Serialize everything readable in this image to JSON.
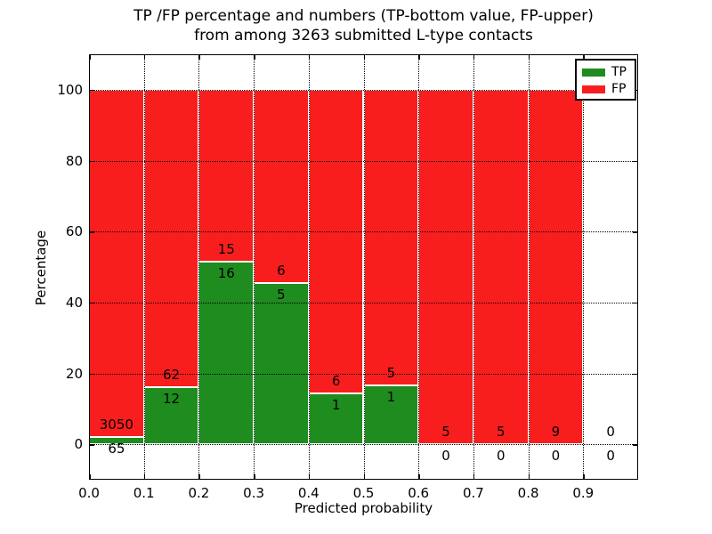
{
  "chart_data": {
    "type": "bar",
    "stacked": true,
    "normalized_to_percent": true,
    "title_line1": "TP /FP percentage and numbers (TP-bottom value, FP-upper)",
    "title_line2": "from among 3263 submitted L-type contacts",
    "xlabel": "Predicted probability",
    "ylabel": "Percentage",
    "xlim": [
      0.0,
      1.0
    ],
    "ylim": [
      -10,
      110
    ],
    "x_tick_values": [
      0.0,
      0.1,
      0.2,
      0.3,
      0.4,
      0.5,
      0.6,
      0.7,
      0.8,
      0.9
    ],
    "x_tick_labels": [
      "0.0",
      "0.1",
      "0.2",
      "0.3",
      "0.4",
      "0.5",
      "0.6",
      "0.7",
      "0.8",
      "0.9"
    ],
    "y_tick_values": [
      0,
      20,
      40,
      60,
      80,
      100
    ],
    "y_tick_labels": [
      "0",
      "20",
      "40",
      "60",
      "80",
      "100"
    ],
    "grid": true,
    "bin_width": 0.1,
    "categories": [
      "0.0-0.1",
      "0.1-0.2",
      "0.2-0.3",
      "0.3-0.4",
      "0.4-0.5",
      "0.5-0.6",
      "0.6-0.7",
      "0.7-0.8",
      "0.8-0.9",
      "0.9-1.0"
    ],
    "series": [
      {
        "name": "TP",
        "color": "#1e8c1e",
        "values": [
          65,
          12,
          16,
          5,
          1,
          1,
          0,
          0,
          0,
          0
        ]
      },
      {
        "name": "FP",
        "color": "#f91e1e",
        "values": [
          3050,
          62,
          15,
          6,
          6,
          5,
          5,
          5,
          9,
          0
        ]
      }
    ],
    "tp_percent_of_bin": [
      2.1,
      16.2,
      51.6,
      45.5,
      14.3,
      16.7,
      0.0,
      0.0,
      0.0,
      null
    ],
    "legend_position": "upper right",
    "legend": [
      {
        "label": "TP",
        "color": "#1e8c1e"
      },
      {
        "label": "FP",
        "color": "#f91e1e"
      }
    ],
    "colors": {
      "tp": "#1e8c1e",
      "fp": "#f91e1e",
      "grid": "#000000",
      "background": "#ffffff"
    }
  }
}
